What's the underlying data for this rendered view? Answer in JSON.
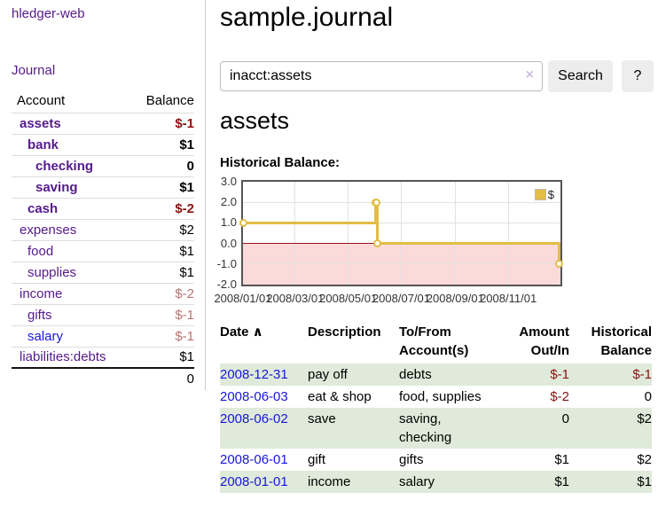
{
  "app": {
    "title": "hledger-web"
  },
  "header": {
    "title": "sample.journal"
  },
  "sidebar": {
    "journal_link": "Journal",
    "accounts_table": {
      "account_header": "Account",
      "balance_header": "Balance",
      "rows": [
        {
          "name": "assets",
          "balance": "$-1",
          "level": 1,
          "bold": true,
          "link_style": "purple",
          "balance_style": "neg-strong"
        },
        {
          "name": "bank",
          "balance": "$1",
          "level": 2,
          "bold": true,
          "link_style": "purple",
          "balance_style": "pos-strong"
        },
        {
          "name": "checking",
          "balance": "0",
          "level": 3,
          "bold": true,
          "link_style": "purple",
          "balance_style": "pos-strong"
        },
        {
          "name": "saving",
          "balance": "$1",
          "level": 3,
          "bold": true,
          "link_style": "purple",
          "balance_style": "pos-strong"
        },
        {
          "name": "cash",
          "balance": "$-2",
          "level": 2,
          "bold": true,
          "link_style": "purple",
          "balance_style": "neg-strong"
        },
        {
          "name": "expenses",
          "balance": "$2",
          "level": 1,
          "bold": false,
          "link_style": "purple",
          "balance_style": "pos"
        },
        {
          "name": "food",
          "balance": "$1",
          "level": 2,
          "bold": false,
          "link_style": "purple",
          "balance_style": "pos"
        },
        {
          "name": "supplies",
          "balance": "$1",
          "level": 2,
          "bold": false,
          "link_style": "purple",
          "balance_style": "pos"
        },
        {
          "name": "income",
          "balance": "$-2",
          "level": 1,
          "bold": false,
          "link_style": "purple",
          "balance_style": "neg-muted"
        },
        {
          "name": "gifts",
          "balance": "$-1",
          "level": 2,
          "bold": false,
          "link_style": "purple",
          "balance_style": "neg-muted"
        },
        {
          "name": "salary",
          "balance": "$-1",
          "level": 2,
          "bold": false,
          "link_style": "blue",
          "balance_style": "neg-muted"
        },
        {
          "name": "liabilities:debts",
          "balance": "$1",
          "level": 1,
          "bold": false,
          "link_style": "purple",
          "balance_style": "pos"
        }
      ],
      "total": "0"
    }
  },
  "search": {
    "value": "inacct:assets",
    "clear_icon": "×",
    "button_label": "Search",
    "help_label": "?"
  },
  "account_page": {
    "heading": "assets",
    "chart_label": "Historical Balance:"
  },
  "chart_data": {
    "type": "line",
    "title": "Historical Balance",
    "step": true,
    "series": [
      {
        "name": "$",
        "points": [
          [
            "2008-01-01",
            1
          ],
          [
            "2008-06-01",
            2
          ],
          [
            "2008-06-02",
            2
          ],
          [
            "2008-06-03",
            0
          ],
          [
            "2008-12-31",
            -1
          ]
        ]
      }
    ],
    "x_ticks": [
      "2008/01/01",
      "2008/03/01",
      "2008/05/01",
      "2008/07/01",
      "2008/09/01",
      "2008/11/01"
    ],
    "y_ticks": [
      "3.0",
      "2.0",
      "1.0",
      "0.0",
      "-1.0",
      "-2.0"
    ],
    "ylim": [
      -2,
      3
    ],
    "xlim": [
      "2008-01-01",
      "2008-12-31"
    ],
    "grid": true,
    "legend_position": "top-right",
    "legend_label": "$",
    "line_color": "#e3bd45",
    "negative_fill_color": "#fbdada",
    "zero_line_color": "#991111"
  },
  "register": {
    "sort_icon": "∧",
    "columns": [
      {
        "label": "Date",
        "sorted": true
      },
      {
        "label": "Description"
      },
      {
        "label": "To/From Account(s)"
      },
      {
        "label": "Amount Out/In",
        "align": "right"
      },
      {
        "label": "Historical Balance",
        "align": "right"
      }
    ],
    "rows": [
      {
        "date": "2008-12-31",
        "description": "pay off",
        "accounts": "debts",
        "amount": "$-1",
        "balance": "$-1",
        "amount_neg": true,
        "balance_neg": true,
        "striped": true
      },
      {
        "date": "2008-06-03",
        "description": "eat & shop",
        "accounts": "food, supplies",
        "amount": "$-2",
        "balance": "0",
        "amount_neg": true,
        "balance_neg": false,
        "striped": false
      },
      {
        "date": "2008-06-02",
        "description": "save",
        "accounts": "saving, checking",
        "amount": "0",
        "balance": "$2",
        "amount_neg": false,
        "balance_neg": false,
        "striped": true
      },
      {
        "date": "2008-06-01",
        "description": "gift",
        "accounts": "gifts",
        "amount": "$1",
        "balance": "$2",
        "amount_neg": false,
        "balance_neg": false,
        "striped": false
      },
      {
        "date": "2008-01-01",
        "description": "income",
        "accounts": "salary",
        "amount": "$1",
        "balance": "$1",
        "amount_neg": false,
        "balance_neg": false,
        "striped": true
      }
    ]
  },
  "colors": {
    "purple": "#551a8b",
    "blue": "#1717dd",
    "negative": "#8b1212",
    "negative_muted": "#b97272",
    "chart_gold": "#e3bd45",
    "chart_pink": "#fbdada",
    "stripe_green": "#dfeada",
    "zero_line": "#991111"
  }
}
